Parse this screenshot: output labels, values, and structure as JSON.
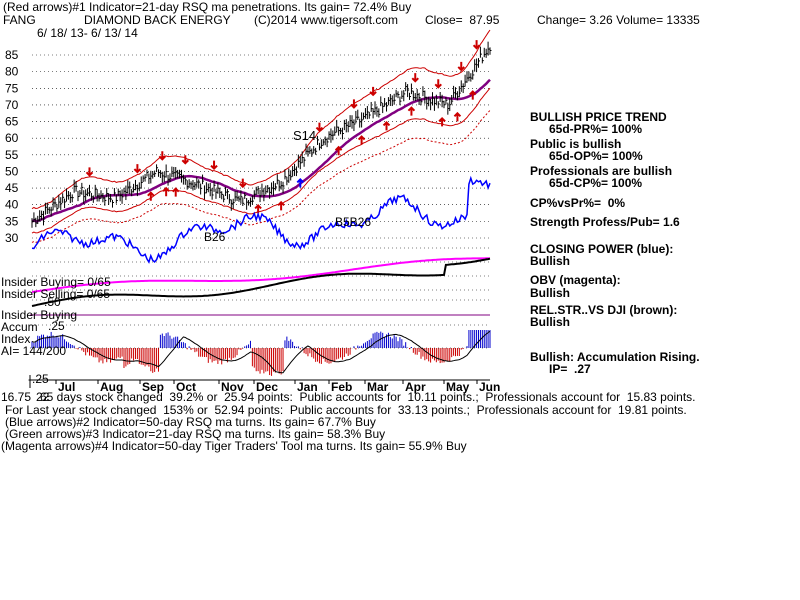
{
  "header": {
    "line1": "(Red arrows)#1 Indicator=21-day RSQ ma penetrations. Its gain= 72.4% Buy",
    "symbol": "FANG",
    "company": "DIAMOND BACK ENERGY",
    "copyright": "(C)2014 www.tigersoft.com",
    "close": "Close=  87.95",
    "change": "Change= 3.26 Volume= 13335",
    "dates": "6/ 18/ 13- 6/ 13/ 14"
  },
  "right_panel": {
    "trend_title": "BULLISH PRICE TREND",
    "pr": "65d-PR%= 100%",
    "public": "Public is bullish",
    "op": "65d-OP%= 100%",
    "pros": "Professionals are bullish",
    "cp": "65d-CP%= 100%",
    "cpvspr": "CP%vsPr%=  0%",
    "strength": "Strength Profess/Pub= 1.6",
    "closing_power": "CLOSING POWER (blue):",
    "closing_power_v": "Bullish",
    "obv": "OBV (magenta):",
    "obv_v": "Bullish",
    "relstr": "REL.STR..VS DJI (brown):",
    "relstr_v": "Bullish",
    "accum": "Bullish: Accumulation Rising.",
    "ip": "IP=  .27"
  },
  "left_labels": {
    "insider_buying": "Insider Buying= 0/65",
    "insider_selling": "Insider Selling= 0/65",
    "insider_buying2": "Insider Buying",
    "accum": "Accum",
    "index": "Index",
    "ai": "AI= 144/200",
    "top_val": ".25",
    "mid_val": ".50",
    "bot_val": "-.25",
    "bot_left": "16.75",
    "bot_left2": "22"
  },
  "annotations": {
    "s14": "S14",
    "b26a": "B26",
    "b5b26": "B5B26"
  },
  "footer": {
    "line1": "65 days stock changed  39.2% or  25.94 points:  Public accounts for  10.11 points.;  Professionals account for  15.83 points.",
    "line2": "For Last year stock changed  153% or  52.94 points:  Public accounts for  33.13 points.;  Professionals account for  19.81 points.",
    "line3": "(Blue arrows)#2 Indicator=50-day RSQ ma turns. Its gain= 67.7% Buy",
    "line4": "(Green arrows)#3 Indicator=21-day RSQ ma turns. Its gain= 58.3% Buy",
    "line5": "(Magenta arrows)#4 Indicator=50-day Tiger Traders' Tool ma turns. Its gain= 55.9% Buy"
  },
  "colors": {
    "price": "#000000",
    "bands": "#cc0000",
    "ma": "#800080",
    "closing_power": "#0000ff",
    "obv": "#ff00ff",
    "relstr": "#000000",
    "accum_pos": "#0000cc",
    "accum_neg": "#cc0000",
    "grid": "#000000"
  },
  "chart_data": {
    "type": "line",
    "title": "DIAMOND BACK ENERGY",
    "y_ticks": [
      85,
      80,
      75,
      70,
      65,
      60,
      55,
      50,
      45,
      40,
      35,
      30
    ],
    "x_ticks": [
      "Jul",
      "Aug",
      "Sep",
      "Oct",
      "Nov",
      "Dec",
      "Jan",
      "Feb",
      "Mar",
      "Apr",
      "May",
      "Jun"
    ],
    "ylim": [
      25,
      88
    ],
    "series": [
      {
        "name": "price",
        "x": [
          0,
          1,
          2,
          3,
          4,
          5,
          6,
          7,
          8,
          9,
          10,
          11
        ],
        "values": [
          35,
          44,
          42,
          50,
          46,
          41,
          47,
          60,
          66,
          74,
          70,
          88
        ]
      }
    ]
  }
}
